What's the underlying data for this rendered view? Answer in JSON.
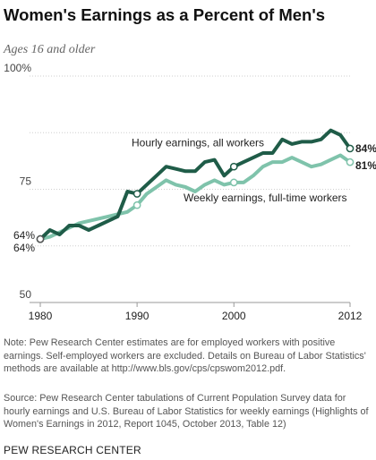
{
  "title": "Women's Earnings as a Percent of Men's",
  "subtitle": "Ages 16 and older",
  "note": "Note: Pew Research Center estimates are for employed workers with positive earnings. Self-employed workers are excluded. Details on Bureau of Labor Statistics' methods are available at  http://www.bls.gov/cps/cpswom2012.pdf.",
  "source": "Source: Pew Research Center tabulations of Current Population Survey data for hourly earnings and U.S. Bureau of Labor Statistics for weekly earnings (Highlights of Women's Earnings in 2012, Report 1045, October 2013, Table 12)",
  "brand": "PEW RESEARCH CENTER",
  "colors": {
    "hourly": "#1f5c48",
    "weekly": "#7fc3ab",
    "grid": "#cccccc",
    "text": "#333333"
  },
  "chart_data": {
    "type": "line",
    "title": "Women's Earnings as a Percent of Men's",
    "xlabel": "",
    "ylabel": "",
    "xlim": [
      1980,
      2012
    ],
    "ylim": [
      50,
      100
    ],
    "x_ticks": [
      "1980",
      "1990",
      "2000",
      "2012"
    ],
    "x_tick_values": [
      1980,
      1990,
      2000,
      2012
    ],
    "y_ticks": [
      "50",
      "75",
      "100%"
    ],
    "y_tick_values": [
      50,
      75,
      100
    ],
    "grid": true,
    "x": [
      1980,
      1981,
      1982,
      1983,
      1984,
      1985,
      1986,
      1987,
      1988,
      1989,
      1990,
      1991,
      1992,
      1993,
      1994,
      1995,
      1996,
      1997,
      1998,
      1999,
      2000,
      2001,
      2002,
      2003,
      2004,
      2005,
      2006,
      2007,
      2008,
      2009,
      2010,
      2011,
      2012
    ],
    "series": [
      {
        "name": "Hourly earnings, all workers",
        "values": [
          64,
          66,
          65,
          67,
          67,
          66,
          67,
          68,
          69,
          74.5,
          74,
          76,
          78,
          80,
          79.5,
          79,
          79,
          81,
          81.5,
          78,
          80,
          81,
          82,
          83,
          83,
          86,
          85,
          85.5,
          85.5,
          86,
          88,
          87,
          84
        ],
        "end_label": "84%",
        "start_label": "64%"
      },
      {
        "name": "Weekly earnings, full-time workers",
        "values": [
          64,
          64.5,
          65.5,
          66.5,
          67.5,
          68,
          68.5,
          69,
          69.5,
          70,
          71.5,
          74,
          75.5,
          77,
          76,
          75.5,
          74.5,
          76,
          77,
          76,
          76.5,
          76.5,
          78,
          80,
          81,
          81,
          82,
          81,
          80,
          80.5,
          81.5,
          82.5,
          81
        ],
        "end_label": "81%",
        "start_label": "64%"
      }
    ]
  }
}
